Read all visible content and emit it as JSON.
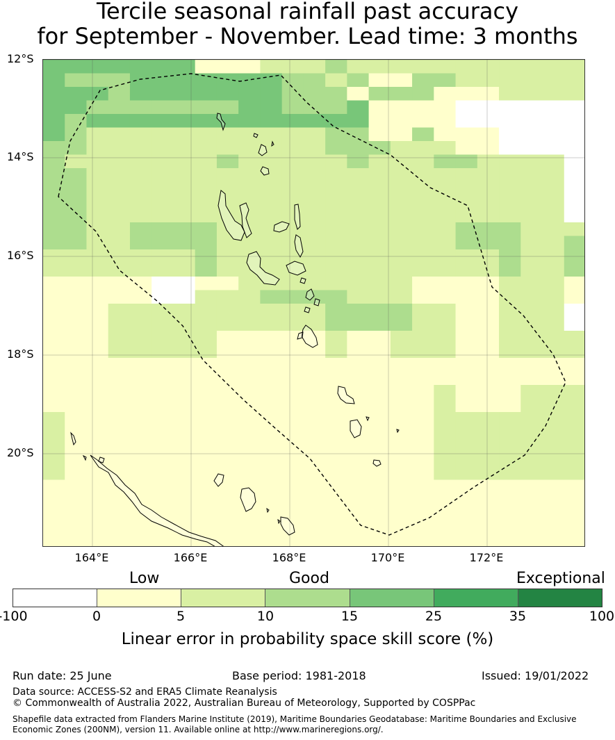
{
  "title": {
    "line1": "Tercile seasonal rainfall past accuracy",
    "line2": "for September - November. Lead time: 3 months"
  },
  "map": {
    "lat_labels": [
      "12°S",
      "14°S",
      "16°S",
      "18°S",
      "20°S"
    ],
    "lon_labels": [
      "164°E",
      "166°E",
      "168°E",
      "170°E",
      "172°E"
    ],
    "lon_range": [
      163,
      174
    ],
    "lat_range": [
      -21.9,
      -12
    ],
    "grid": true,
    "colors": [
      "#ffffff",
      "#ffffcc",
      "#d9f0a3",
      "#addd8e",
      "#78c679",
      "#41ab5d",
      "#238443"
    ],
    "eez_boundary_style": "dashed black",
    "skill_grid": [
      "4444444111222322222222222",
      "4333444444433231133222222",
      "4443444444433313331112222",
      "4433333334433341111000000",
      "4344444444444441111000000",
      "4322222222222331131110000",
      "3322222222222333222110000",
      "3222222232222232223322220",
      "3322222222222222222222220",
      "3322222222222222222222220",
      "3322222222222222222222220",
      "3322222222222222222222220",
      "3322333322222222222333222",
      "3322333322222222222333223",
      "2222222322222222222223223",
      "2222222322222222222223223",
      "1111100112222222211112221",
      "1111100222333322211112221",
      "1112222222222333322112220",
      "1112222222222333322112220",
      "1112222211111211222112222",
      "1112222211111211222112222",
      "1111111111111111111111111",
      "1111111111111111111111111",
      "1111111111111111112111222",
      "1111111111111111112111222",
      "2111111111111111112222222",
      "2111111111111111112222222",
      "2111111111111111112222222",
      "2111111111111111112222222",
      "2111111111111111112222222",
      "1111111111111111111111111",
      "1111111111111111111111111",
      "1111111111111111111111111",
      "1111111111111111111111111",
      "1111111111111111111111111"
    ]
  },
  "legend": {
    "categories": [
      "Low",
      "Good",
      "Exceptional"
    ],
    "ticks": [
      "-100",
      "0",
      "5",
      "10",
      "15",
      "25",
      "35",
      "100"
    ],
    "label": "Linear error in probability space skill score (%)"
  },
  "footer": {
    "run_date": "Run date: 25 June",
    "base_period": "Base period: 1981-2018",
    "issued": "Issued: 19/01/2022",
    "data_source": "Data source: ACCESS-S2 and ERA5 Climate Reanalysis",
    "copyright": "© Commonwealth of Australia 2022, Australian Bureau of Meteorology, Supported by COSPPac",
    "shapefile1": "Shapefile data extracted from Flanders Marine Institute (2019), Maritime Boundaries Geodatabase: Maritime Boundaries and Exclusive",
    "shapefile2": "Economic Zones (200NM), version 11. Available online at http://www.marineregions.org/."
  }
}
